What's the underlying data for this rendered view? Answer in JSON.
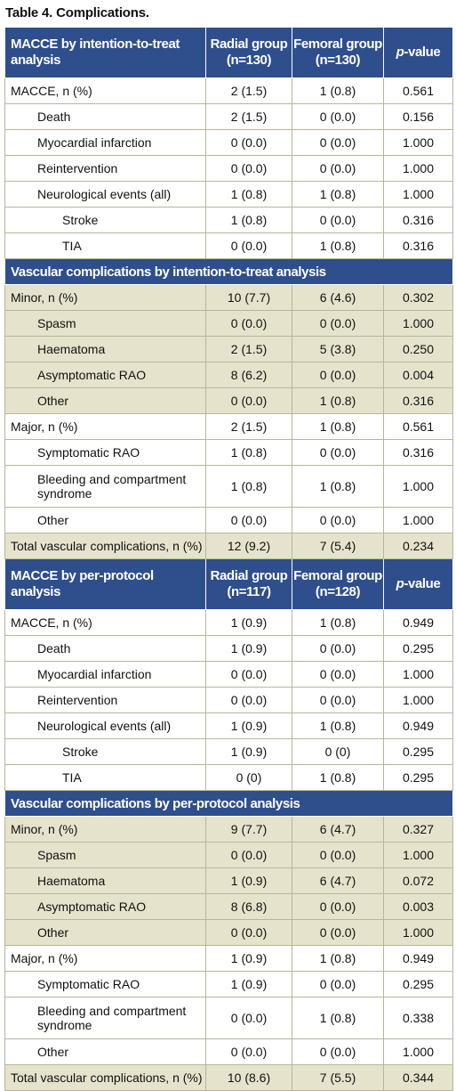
{
  "caption": "Table 4. Complications.",
  "headers": {
    "itt": {
      "label": "MACCE by intention-to-treat analysis",
      "radial": "Radial group",
      "radial_n": "(n=130)",
      "femoral": "Femoral group",
      "femoral_n": "(n=130)",
      "p_italic": "p",
      "p_rest": "-value"
    },
    "pp": {
      "label": "MACCE by per-protocol analysis",
      "radial": "Radial group",
      "radial_n": "(n=117)",
      "femoral": "Femoral group",
      "femoral_n": "(n=128)",
      "p_italic": "p",
      "p_rest": "-value"
    }
  },
  "sections": {
    "itt_macce": [
      {
        "label": "MACCE, n (%)",
        "radial": "2 (1.5)",
        "femoral": "1 (0.8)",
        "p": "0.561"
      },
      {
        "label": "Death",
        "radial": "2 (1.5)",
        "femoral": "0 (0.0)",
        "p": "0.156"
      },
      {
        "label": "Myocardial infarction",
        "radial": "0 (0.0)",
        "femoral": "0 (0.0)",
        "p": "1.000"
      },
      {
        "label": "Reintervention",
        "radial": "0 (0.0)",
        "femoral": "0 (0.0)",
        "p": "1.000"
      },
      {
        "label": "Neurological events (all)",
        "radial": "1 (0.8)",
        "femoral": "1 (0.8)",
        "p": "1.000"
      },
      {
        "label": "Stroke",
        "radial": "1 (0.8)",
        "femoral": "0 (0.0)",
        "p": "0.316"
      },
      {
        "label": "TIA",
        "radial": "0 (0.0)",
        "femoral": "1 (0.8)",
        "p": "0.316"
      }
    ],
    "itt_vasc_title": "Vascular complications by intention-to-treat analysis",
    "itt_vasc": [
      {
        "label": "Minor, n (%)",
        "radial": "10 (7.7)",
        "femoral": "6 (4.6)",
        "p": "0.302"
      },
      {
        "label": "Spasm",
        "radial": "0 (0.0)",
        "femoral": "0 (0.0)",
        "p": "1.000"
      },
      {
        "label": "Haematoma",
        "radial": "2 (1.5)",
        "femoral": "5 (3.8)",
        "p": "0.250"
      },
      {
        "label": "Asymptomatic RAO",
        "radial": "8 (6.2)",
        "femoral": "0 (0.0)",
        "p": "0.004"
      },
      {
        "label": "Other",
        "radial": "0 (0.0)",
        "femoral": "1 (0.8)",
        "p": "0.316"
      },
      {
        "label": "Major, n (%)",
        "radial": "2 (1.5)",
        "femoral": "1 (0.8)",
        "p": "0.561"
      },
      {
        "label": "Symptomatic RAO",
        "radial": "1 (0.8)",
        "femoral": "0 (0.0)",
        "p": "0.316"
      },
      {
        "label": "Bleeding and compartment syndrome",
        "radial": "1 (0.8)",
        "femoral": "1 (0.8)",
        "p": "1.000"
      },
      {
        "label": "Other",
        "radial": "0 (0.0)",
        "femoral": "0 (0.0)",
        "p": "1.000"
      },
      {
        "label": "Total vascular complications, n (%)",
        "radial": "12 (9.2)",
        "femoral": "7 (5.4)",
        "p": "0.234"
      }
    ],
    "pp_macce": [
      {
        "label": "MACCE, n (%)",
        "radial": "1 (0.9)",
        "femoral": "1 (0.8)",
        "p": "0.949"
      },
      {
        "label": "Death",
        "radial": "1 (0.9)",
        "femoral": "0 (0.0)",
        "p": "0.295"
      },
      {
        "label": "Myocardial infarction",
        "radial": "0 (0.0)",
        "femoral": "0 (0.0)",
        "p": "1.000"
      },
      {
        "label": "Reintervention",
        "radial": "0 (0.0)",
        "femoral": "0 (0.0)",
        "p": "1.000"
      },
      {
        "label": "Neurological events (all)",
        "radial": "1 (0.9)",
        "femoral": "1 (0.8)",
        "p": "0.949"
      },
      {
        "label": "Stroke",
        "radial": "1 (0.9)",
        "femoral": "0 (0)",
        "p": "0.295"
      },
      {
        "label": "TIA",
        "radial": "0 (0)",
        "femoral": "1 (0.8)",
        "p": "0.295"
      }
    ],
    "pp_vasc_title": "Vascular complications by per-protocol analysis",
    "pp_vasc": [
      {
        "label": "Minor, n (%)",
        "radial": "9 (7.7)",
        "femoral": "6 (4.7)",
        "p": "0.327"
      },
      {
        "label": "Spasm",
        "radial": "0 (0.0)",
        "femoral": "0 (0.0)",
        "p": "1.000"
      },
      {
        "label": "Haematoma",
        "radial": "1 (0.9)",
        "femoral": "6 (4.7)",
        "p": "0.072"
      },
      {
        "label": "Asymptomatic RAO",
        "radial": "8 (6.8)",
        "femoral": "0 (0.0)",
        "p": "0.003"
      },
      {
        "label": "Other",
        "radial": "0 (0.0)",
        "femoral": "0 (0.0)",
        "p": "1.000"
      },
      {
        "label": "Major, n (%)",
        "radial": "1 (0.9)",
        "femoral": "1 (0.8)",
        "p": "0.949"
      },
      {
        "label": "Symptomatic RAO",
        "radial": "1 (0.9)",
        "femoral": "0 (0.0)",
        "p": "0.295"
      },
      {
        "label": "Bleeding and compartment syndrome",
        "radial": "0 (0.0)",
        "femoral": "1 (0.8)",
        "p": "0.338"
      },
      {
        "label": "Other",
        "radial": "0 (0.0)",
        "femoral": "0 (0.0)",
        "p": "1.000"
      },
      {
        "label": "Total vascular complications, n (%)",
        "radial": "10 (8.6)",
        "femoral": "7 (5.5)",
        "p": "0.344"
      }
    ]
  },
  "colors": {
    "header_bg": "#2f4e8c",
    "shade": "#e6e3cc",
    "border": "#b9b59a"
  }
}
